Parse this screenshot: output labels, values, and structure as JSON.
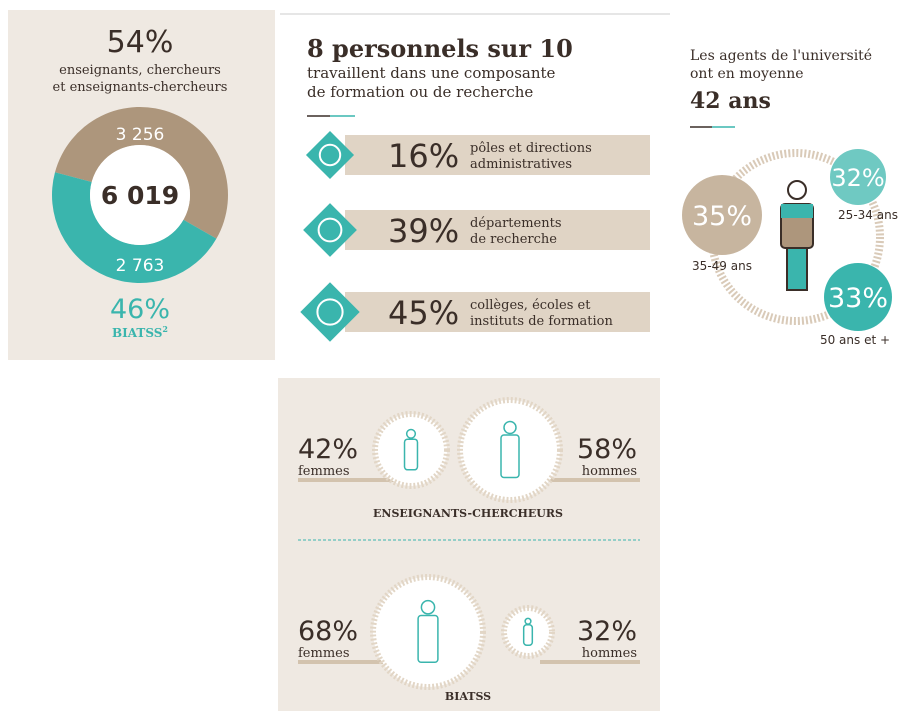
{
  "donut": {
    "top_pct": "54%",
    "top_line_1": "enseignants, chercheurs",
    "top_line_2": "et enseignants-chercheurs",
    "total": "6 019",
    "segments": [
      {
        "label": "3 256",
        "value": 3256,
        "color": "#ad967c"
      },
      {
        "label": "2 763",
        "value": 2763,
        "color": "#3ab5ad"
      }
    ],
    "bottom_pct": "46%",
    "bottom_label": "BIATSS",
    "bottom_sup": "2"
  },
  "components": {
    "title": "8 personnels sur 10",
    "subtitle_1": "travaillent dans une composante",
    "subtitle_2": "de formation ou de recherche",
    "rows": [
      {
        "pct": "16%",
        "line_1": "pôles et directions",
        "line_2": "administratives"
      },
      {
        "pct": "39%",
        "line_1": "départements",
        "line_2": "de recherche"
      },
      {
        "pct": "45%",
        "line_1": "collèges, écoles et",
        "line_2": "instituts de formation"
      }
    ]
  },
  "age": {
    "line_1": "Les agents de l'université",
    "line_2": "ont en moyenne",
    "average": "42 ans",
    "groups": [
      {
        "pct": "35%",
        "label": "35-49 ans"
      },
      {
        "pct": "32%",
        "label": "25-34 ans"
      },
      {
        "pct": "33%",
        "label": "50 ans et +"
      }
    ]
  },
  "gender": {
    "teachers": {
      "women_pct": "42%",
      "women": "femmes",
      "men_pct": "58%",
      "men": "hommes",
      "label": "ENSEIGNANTS-CHERCHEURS"
    },
    "staff": {
      "women_pct": "68%",
      "women": "femmes",
      "men_pct": "32%",
      "men": "hommes",
      "label": "BIATSS"
    }
  }
}
